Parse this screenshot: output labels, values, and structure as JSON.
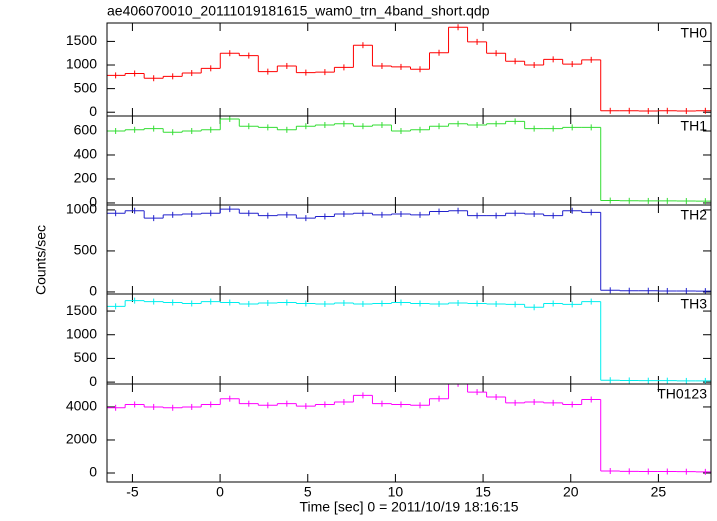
{
  "chart_data": [
    {
      "type": "histogram",
      "title": "ae406070010_20111019181615_wam0_trn_4band_short.qdp",
      "bins": [
        -6.5,
        -5.415,
        -4.33,
        -3.245,
        -2.16,
        -1.075,
        0.01,
        1.095,
        2.18,
        3.265,
        4.35,
        5.435,
        6.52,
        7.605,
        8.69,
        9.775,
        10.86,
        11.945,
        13.03,
        14.115,
        15.2,
        16.285,
        17.37,
        18.455,
        19.54,
        20.625,
        21.71,
        22.795,
        23.88,
        24.965,
        26.05,
        27.135,
        28.22
      ],
      "series": [
        {
          "name": "TH0",
          "color": "#ff0000",
          "values": [
            780,
            820,
            720,
            760,
            830,
            930,
            1250,
            1200,
            860,
            980,
            840,
            850,
            950,
            1420,
            980,
            960,
            910,
            1260,
            1800,
            1490,
            1250,
            1080,
            1000,
            1120,
            1020,
            1110,
            30,
            30,
            25,
            30,
            25,
            30
          ]
        }
      ],
      "xlim": [
        -6.45,
        28
      ],
      "xticks": [
        -5,
        0,
        5,
        10,
        15,
        20,
        25
      ],
      "ylim": [
        -80,
        1890
      ],
      "yticks": [
        0,
        500,
        1000,
        1500
      ]
    },
    {
      "type": "histogram",
      "bins": [
        -6.5,
        -5.415,
        -4.33,
        -3.245,
        -2.16,
        -1.075,
        0.01,
        1.095,
        2.18,
        3.265,
        4.35,
        5.435,
        6.52,
        7.605,
        8.69,
        9.775,
        10.86,
        11.945,
        13.03,
        14.115,
        15.2,
        16.285,
        17.37,
        18.455,
        19.54,
        20.625,
        21.71,
        22.795,
        23.88,
        24.965,
        26.05,
        27.135,
        28.22
      ],
      "series": [
        {
          "name": "TH1",
          "color": "#33dd33",
          "values": [
            600,
            610,
            620,
            590,
            600,
            610,
            700,
            640,
            630,
            610,
            640,
            650,
            660,
            640,
            650,
            600,
            610,
            640,
            660,
            650,
            660,
            680,
            620,
            620,
            630,
            630,
            20,
            18,
            17,
            17,
            16,
            15
          ]
        }
      ],
      "xlim": [
        -6.45,
        28
      ],
      "xticks": [
        -5,
        0,
        5,
        10,
        15,
        20,
        25
      ],
      "ylim": [
        -17,
        725
      ],
      "yticks": [
        0,
        200,
        400,
        600
      ]
    },
    {
      "type": "histogram",
      "ylabel": "Counts/sec",
      "bins": [
        -6.5,
        -5.415,
        -4.33,
        -3.245,
        -2.16,
        -1.075,
        0.01,
        1.095,
        2.18,
        3.265,
        4.35,
        5.435,
        6.52,
        7.605,
        8.69,
        9.775,
        10.86,
        11.945,
        13.03,
        14.115,
        15.2,
        16.285,
        17.37,
        18.455,
        19.54,
        20.625,
        21.71,
        22.795,
        23.88,
        24.965,
        26.05,
        27.135,
        28.22
      ],
      "series": [
        {
          "name": "TH2",
          "color": "#2020cc",
          "values": [
            960,
            990,
            900,
            940,
            950,
            960,
            1010,
            960,
            930,
            940,
            900,
            920,
            950,
            960,
            940,
            950,
            940,
            980,
            990,
            930,
            930,
            960,
            950,
            930,
            990,
            970,
            20,
            15,
            15,
            12,
            12,
            10
          ]
        }
      ],
      "xlim": [
        -6.45,
        28
      ],
      "xticks": [
        -5,
        0,
        5,
        10,
        15,
        20,
        25
      ],
      "ylim": [
        -25,
        1060
      ],
      "yticks": [
        0,
        500,
        1000
      ]
    },
    {
      "type": "histogram",
      "bins": [
        -6.5,
        -5.415,
        -4.33,
        -3.245,
        -2.16,
        -1.075,
        0.01,
        1.095,
        2.18,
        3.265,
        4.35,
        5.435,
        6.52,
        7.605,
        8.69,
        9.775,
        10.86,
        11.945,
        13.03,
        14.115,
        15.2,
        16.285,
        17.37,
        18.455,
        19.54,
        20.625,
        21.71,
        22.795,
        23.88,
        24.965,
        26.05,
        27.135,
        28.22
      ],
      "series": [
        {
          "name": "TH3",
          "color": "#00eeee",
          "values": [
            1600,
            1720,
            1700,
            1680,
            1660,
            1700,
            1680,
            1650,
            1670,
            1680,
            1660,
            1650,
            1670,
            1650,
            1660,
            1680,
            1660,
            1650,
            1670,
            1660,
            1650,
            1640,
            1580,
            1660,
            1640,
            1700,
            40,
            35,
            30,
            30,
            25,
            25
          ]
        }
      ],
      "xlim": [
        -6.45,
        28
      ],
      "xticks": [
        -5,
        0,
        5,
        10,
        15,
        20,
        25
      ],
      "ylim": [
        -40,
        1860
      ],
      "yticks": [
        0,
        500,
        1000,
        1500
      ]
    },
    {
      "type": "histogram",
      "xlabel": "Time [sec] 0 = 2011/10/19 18:16:15",
      "bins": [
        -6.5,
        -5.415,
        -4.33,
        -3.245,
        -2.16,
        -1.075,
        0.01,
        1.095,
        2.18,
        3.265,
        4.35,
        5.435,
        6.52,
        7.605,
        8.69,
        9.775,
        10.86,
        11.945,
        13.03,
        14.115,
        15.2,
        16.285,
        17.37,
        18.455,
        19.54,
        20.625,
        21.71,
        22.795,
        23.88,
        24.965,
        26.05,
        27.135,
        28.22
      ],
      "series": [
        {
          "name": "TH0123",
          "color": "#ff00ff",
          "values": [
            3950,
            4150,
            4000,
            3950,
            4000,
            4150,
            4500,
            4200,
            4100,
            4200,
            4050,
            4150,
            4300,
            4700,
            4200,
            4150,
            4100,
            4500,
            5400,
            4900,
            4600,
            4250,
            4300,
            4250,
            4150,
            4450,
            120,
            100,
            90,
            90,
            80,
            70
          ]
        }
      ],
      "xlim": [
        -6.45,
        28
      ],
      "xticks": [
        -5,
        0,
        5,
        10,
        15,
        20,
        25
      ],
      "ylim": [
        -545,
        5390
      ],
      "yticks": [
        0,
        2000,
        4000
      ]
    }
  ]
}
